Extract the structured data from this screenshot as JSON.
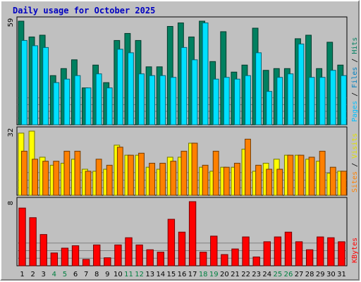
{
  "title": "Daily usage for October 2025",
  "chart_data": {
    "type": "bar",
    "categories": [
      "1",
      "2",
      "3",
      "4",
      "5",
      "6",
      "7",
      "8",
      "9",
      "10",
      "11",
      "12",
      "13",
      "14",
      "15",
      "16",
      "17",
      "18",
      "19",
      "20",
      "21",
      "22",
      "23",
      "24",
      "25",
      "26",
      "27",
      "28",
      "29",
      "30",
      "31"
    ],
    "weekend_days": [
      "4",
      "5",
      "11",
      "12",
      "18",
      "19",
      "25",
      "26"
    ],
    "colors": {
      "hits": "#008060",
      "files": "#00e0ff",
      "pages": "#00c0ff",
      "visits": "#ffff00",
      "sites": "#ff8000",
      "kbytes": "#ff0000",
      "title": "#0000c0",
      "weekday_label": "#000000",
      "weekend_label": "#008040",
      "background": "#c0c0c0"
    },
    "panels": [
      {
        "id": "hits-files-pages",
        "ymax_label": "59",
        "ymax": 59,
        "legend": [
          {
            "text": "Pages",
            "color": "#00c0ff"
          },
          {
            "text": " / ",
            "color": "#000000"
          },
          {
            "text": "Files",
            "color": "#0080c0"
          },
          {
            "text": " / ",
            "color": "#000000"
          },
          {
            "text": "Hits",
            "color": "#008060"
          }
        ],
        "series": [
          {
            "name": "Hits",
            "color": "#008060",
            "values": [
              59,
              50,
              51,
              28,
              32,
              37,
              21,
              34,
              24,
              48,
              52,
              48,
              33,
              33,
              56,
              58,
              50,
              59,
              36,
              53,
              30,
              34,
              55,
              31,
              32,
              32,
              49,
              51,
              32,
              47,
              34
            ]
          },
          {
            "name": "Files",
            "color": "#00e0ff",
            "values": [
              48,
              45,
              44,
              24,
              26,
              28,
              21,
              29,
              21,
              43,
              41,
              29,
              28,
              28,
              27,
              44,
              37,
              58,
              26,
              27,
              26,
              28,
              41,
              19,
              27,
              29,
              46,
              27,
              27,
              31,
              28
            ]
          }
        ]
      },
      {
        "id": "visits-sites",
        "ymax_label": "32",
        "ymax": 32,
        "legend": [
          {
            "text": "Sites",
            "color": "#ff8000"
          },
          {
            "text": " / ",
            "color": "#000000"
          },
          {
            "text": "Visits",
            "color": "#e0e000"
          }
        ],
        "series": [
          {
            "name": "Visits",
            "color": "#ffff00",
            "values": [
              31,
              32,
              19,
              15,
              16,
              18,
              13,
              12,
              13,
              25,
              20,
              20,
              14,
              13,
              19,
              19,
              26,
              14,
              12,
              14,
              14,
              23,
              12,
              16,
              18,
              20,
              20,
              18,
              17,
              11,
              12
            ]
          },
          {
            "name": "Sites",
            "color": "#ff8000",
            "values": [
              22,
              18,
              17,
              17,
              22,
              22,
              12,
              18,
              15,
              24,
              20,
              21,
              16,
              16,
              17,
              22,
              26,
              15,
              22,
              14,
              16,
              28,
              15,
              13,
              13,
              20,
              20,
              19,
              22,
              14,
              12
            ]
          }
        ]
      },
      {
        "id": "kbytes",
        "ymax_label": "8",
        "ymax": 8,
        "legend": [
          {
            "text": "KBytes",
            "color": "#ff0000"
          }
        ],
        "series": [
          {
            "name": "KBytes",
            "color": "#ff0000",
            "values": [
              7.2,
              6.0,
              3.9,
              1.6,
              2.2,
              2.5,
              0.8,
              2.6,
              1.0,
              2.6,
              3.5,
              2.6,
              2.0,
              1.7,
              5.8,
              4.2,
              8.0,
              1.7,
              3.7,
              1.4,
              2.1,
              3.6,
              1.1,
              3.0,
              3.6,
              4.2,
              3.0,
              2.0,
              3.6,
              3.5,
              3.0
            ]
          }
        ]
      }
    ]
  }
}
